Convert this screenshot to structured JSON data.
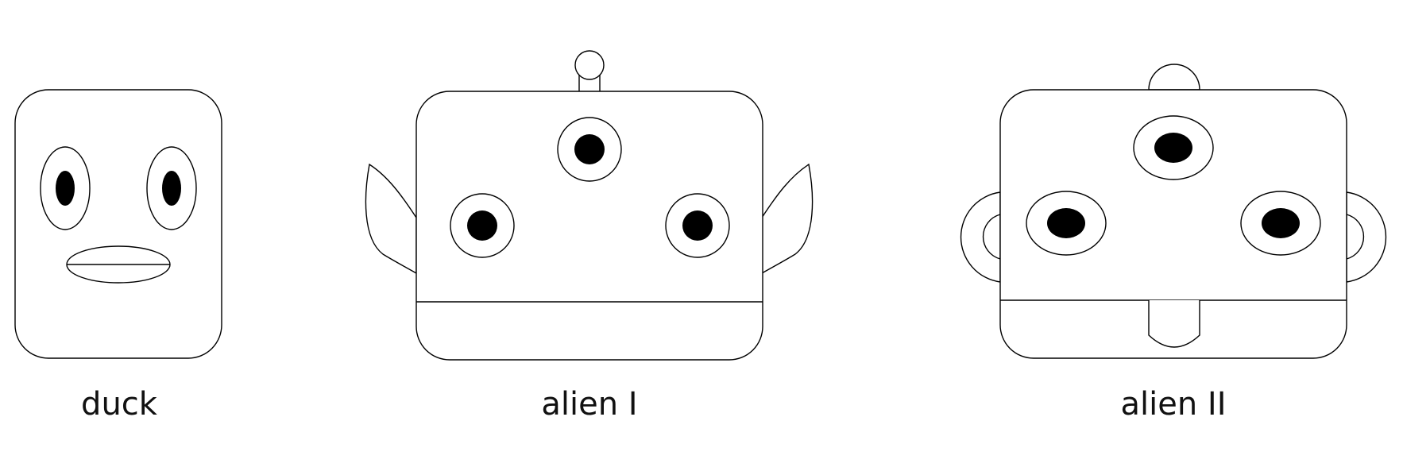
{
  "figures": [
    {
      "label": "duck"
    },
    {
      "label": "alien I"
    },
    {
      "label": "alien II"
    }
  ],
  "colors": {
    "stroke": "#000000",
    "fill": "#ffffff",
    "text": "#111111"
  }
}
